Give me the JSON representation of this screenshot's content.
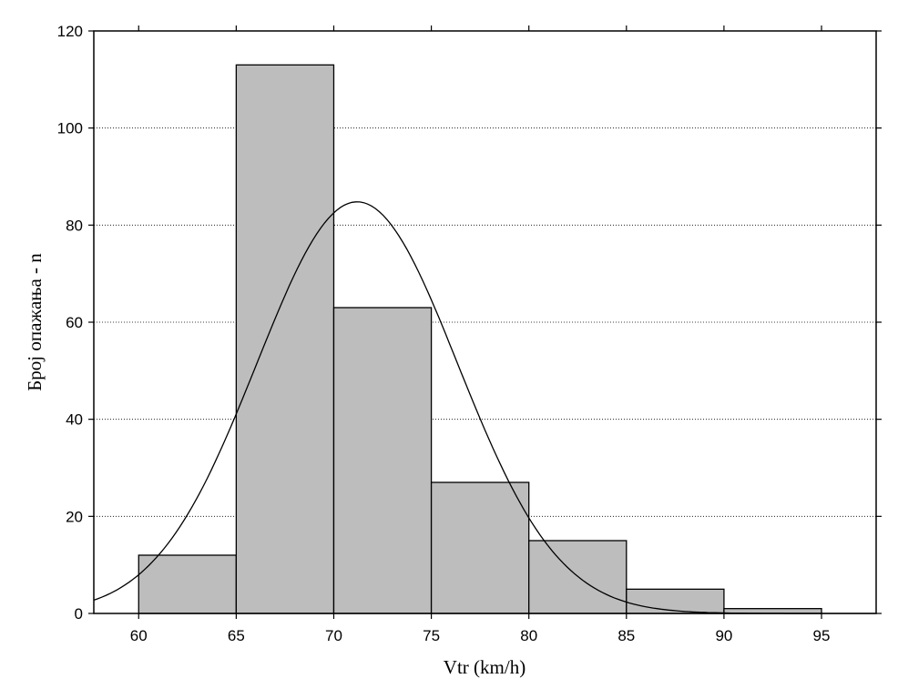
{
  "chart_data": {
    "type": "bar",
    "histogram": true,
    "title": "",
    "xlabel": "Vtr (km/h)",
    "ylabel": "Број опажања - n",
    "bins": [
      {
        "from": 60,
        "to": 65,
        "count": 12
      },
      {
        "from": 65,
        "to": 70,
        "count": 113
      },
      {
        "from": 70,
        "to": 75,
        "count": 63
      },
      {
        "from": 75,
        "to": 80,
        "count": 27
      },
      {
        "from": 80,
        "to": 85,
        "count": 15
      },
      {
        "from": 85,
        "to": 90,
        "count": 5
      },
      {
        "from": 90,
        "to": 95,
        "count": 1
      }
    ],
    "xlim": [
      57.7,
      97.8
    ],
    "ylim": [
      0,
      120
    ],
    "xticks": [
      60,
      65,
      70,
      75,
      80,
      85,
      90,
      95
    ],
    "yticks": [
      0,
      20,
      40,
      60,
      80,
      100,
      120
    ],
    "grid": "horizontal dotted",
    "fit_curve": {
      "type": "normal",
      "mean": 71.2,
      "sd": 5.15,
      "peak": 84.8
    },
    "colors": {
      "bar_fill": "#bdbdbd",
      "line": "#000000",
      "background": "#ffffff"
    }
  }
}
